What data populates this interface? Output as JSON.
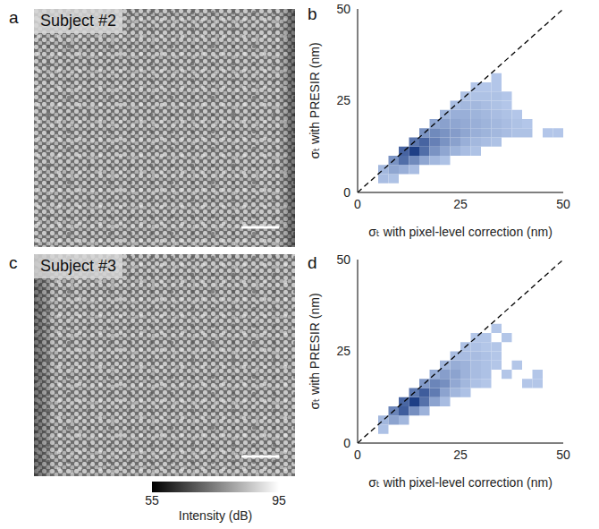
{
  "chart_data": [
    {
      "type": "image",
      "panel_label": "a",
      "title": "Subject #2"
    },
    {
      "type": "heatmap",
      "panel_label": "b",
      "x_label": "σₜ with pixel-level correction (nm)",
      "y_label": "σₜ with PRESIR (nm)",
      "xlim": [
        0,
        50
      ],
      "ylim": [
        0,
        50
      ],
      "xticks": [
        0,
        25,
        50
      ],
      "yticks": [
        0,
        25,
        50
      ],
      "grid": false,
      "bin_width": 2.5,
      "colormap": [
        "#b8cbec",
        "#1e3f86"
      ],
      "reference_line": {
        "x": [
          0,
          50
        ],
        "y": [
          0,
          50
        ],
        "line_style": "dashed",
        "color": "#000000"
      },
      "cells": [
        [
          5,
          2.5,
          3
        ],
        [
          7.5,
          2.5,
          2
        ],
        [
          5,
          5,
          4
        ],
        [
          7.5,
          5,
          8
        ],
        [
          10,
          5,
          6
        ],
        [
          12.5,
          5,
          3
        ],
        [
          7.5,
          7.5,
          12
        ],
        [
          10,
          7.5,
          20
        ],
        [
          12.5,
          7.5,
          14
        ],
        [
          15,
          7.5,
          8
        ],
        [
          17.5,
          7.5,
          4
        ],
        [
          20,
          7.5,
          2
        ],
        [
          10,
          10,
          22
        ],
        [
          12.5,
          10,
          30
        ],
        [
          15,
          10,
          20
        ],
        [
          17.5,
          10,
          12
        ],
        [
          20,
          10,
          8
        ],
        [
          22.5,
          10,
          5
        ],
        [
          25,
          10,
          3
        ],
        [
          27.5,
          10,
          2
        ],
        [
          12.5,
          12.5,
          18
        ],
        [
          15,
          12.5,
          22
        ],
        [
          17.5,
          12.5,
          16
        ],
        [
          20,
          12.5,
          12
        ],
        [
          22.5,
          12.5,
          9
        ],
        [
          25,
          12.5,
          6
        ],
        [
          27.5,
          12.5,
          4
        ],
        [
          30,
          12.5,
          3
        ],
        [
          32.5,
          12.5,
          2
        ],
        [
          15,
          15,
          12
        ],
        [
          17.5,
          15,
          14
        ],
        [
          20,
          15,
          12
        ],
        [
          22.5,
          15,
          10
        ],
        [
          25,
          15,
          8
        ],
        [
          27.5,
          15,
          6
        ],
        [
          30,
          15,
          5
        ],
        [
          32.5,
          15,
          4
        ],
        [
          35,
          15,
          3
        ],
        [
          37.5,
          15,
          2
        ],
        [
          40,
          15,
          2
        ],
        [
          45,
          15,
          1
        ],
        [
          47.5,
          15,
          1
        ],
        [
          17.5,
          17.5,
          8
        ],
        [
          20,
          17.5,
          9
        ],
        [
          22.5,
          17.5,
          8
        ],
        [
          25,
          17.5,
          7
        ],
        [
          27.5,
          17.5,
          6
        ],
        [
          30,
          17.5,
          5
        ],
        [
          32.5,
          17.5,
          4
        ],
        [
          35,
          17.5,
          3
        ],
        [
          37.5,
          17.5,
          2
        ],
        [
          40,
          17.5,
          1
        ],
        [
          20,
          20,
          5
        ],
        [
          22.5,
          20,
          6
        ],
        [
          25,
          20,
          6
        ],
        [
          27.5,
          20,
          5
        ],
        [
          30,
          20,
          4
        ],
        [
          32.5,
          20,
          3
        ],
        [
          35,
          20,
          2
        ],
        [
          37.5,
          20,
          1
        ],
        [
          22.5,
          22.5,
          3
        ],
        [
          25,
          22.5,
          4
        ],
        [
          27.5,
          22.5,
          4
        ],
        [
          30,
          22.5,
          3
        ],
        [
          32.5,
          22.5,
          2
        ],
        [
          35,
          22.5,
          1
        ],
        [
          25,
          25,
          2
        ],
        [
          27.5,
          25,
          2
        ],
        [
          30,
          25,
          2
        ],
        [
          32.5,
          25,
          2
        ],
        [
          35,
          25,
          1
        ],
        [
          27.5,
          27.5,
          1
        ],
        [
          30,
          27.5,
          1
        ],
        [
          32.5,
          27.5,
          1
        ],
        [
          32.5,
          30,
          1
        ]
      ]
    },
    {
      "type": "image",
      "panel_label": "c",
      "title": "Subject #3",
      "colorbar": {
        "range": [
          55,
          95
        ],
        "ticks": [
          55,
          95
        ],
        "label": "Intensity (dB)",
        "colors": [
          "#000000",
          "#ffffff"
        ]
      }
    },
    {
      "type": "heatmap",
      "panel_label": "d",
      "x_label": "σₜ with pixel-level correction (nm)",
      "y_label": "σₜ with PRESIR (nm)",
      "xlim": [
        0,
        50
      ],
      "ylim": [
        0,
        50
      ],
      "xticks": [
        0,
        25,
        50
      ],
      "yticks": [
        0,
        25,
        50
      ],
      "grid": false,
      "bin_width": 2.5,
      "colormap": [
        "#b8cbec",
        "#1e3f86"
      ],
      "reference_line": {
        "x": [
          0,
          50
        ],
        "y": [
          0,
          50
        ],
        "line_style": "dashed",
        "color": "#000000"
      },
      "cells": [
        [
          5,
          2.5,
          2
        ],
        [
          5,
          5,
          4
        ],
        [
          7.5,
          5,
          8
        ],
        [
          10,
          5,
          4
        ],
        [
          7.5,
          7.5,
          14
        ],
        [
          10,
          7.5,
          22
        ],
        [
          12.5,
          7.5,
          12
        ],
        [
          15,
          7.5,
          5
        ],
        [
          10,
          10,
          20
        ],
        [
          12.5,
          10,
          28
        ],
        [
          15,
          10,
          18
        ],
        [
          17.5,
          10,
          8
        ],
        [
          20,
          10,
          3
        ],
        [
          12.5,
          12.5,
          16
        ],
        [
          15,
          12.5,
          22
        ],
        [
          17.5,
          12.5,
          16
        ],
        [
          20,
          12.5,
          8
        ],
        [
          22.5,
          12.5,
          4
        ],
        [
          25,
          12.5,
          2
        ],
        [
          15,
          15,
          10
        ],
        [
          17.5,
          15,
          14
        ],
        [
          20,
          15,
          12
        ],
        [
          22.5,
          15,
          7
        ],
        [
          25,
          15,
          4
        ],
        [
          27.5,
          15,
          2
        ],
        [
          30,
          15,
          1
        ],
        [
          40,
          15,
          1
        ],
        [
          42.5,
          15,
          1
        ],
        [
          17.5,
          17.5,
          6
        ],
        [
          20,
          17.5,
          9
        ],
        [
          22.5,
          17.5,
          8
        ],
        [
          25,
          17.5,
          5
        ],
        [
          27.5,
          17.5,
          3
        ],
        [
          30,
          17.5,
          2
        ],
        [
          35,
          17.5,
          1
        ],
        [
          42.5,
          17.5,
          1
        ],
        [
          20,
          20,
          4
        ],
        [
          22.5,
          20,
          6
        ],
        [
          25,
          20,
          5
        ],
        [
          27.5,
          20,
          3
        ],
        [
          30,
          20,
          2
        ],
        [
          32.5,
          20,
          1
        ],
        [
          37.5,
          20,
          1
        ],
        [
          22.5,
          22.5,
          3
        ],
        [
          25,
          22.5,
          3
        ],
        [
          27.5,
          22.5,
          3
        ],
        [
          30,
          22.5,
          2
        ],
        [
          32.5,
          22.5,
          1
        ],
        [
          25,
          25,
          2
        ],
        [
          27.5,
          25,
          2
        ],
        [
          30,
          25,
          1
        ],
        [
          32.5,
          25,
          1
        ],
        [
          27.5,
          27.5,
          1
        ],
        [
          30,
          27.5,
          1
        ],
        [
          35,
          27.5,
          1
        ],
        [
          32.5,
          30,
          1
        ]
      ]
    }
  ]
}
